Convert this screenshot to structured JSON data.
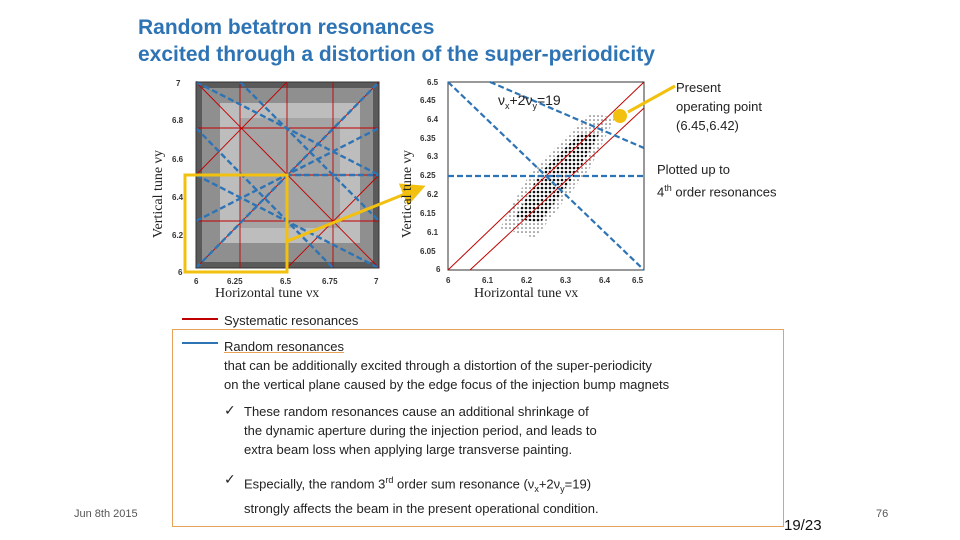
{
  "slide": {
    "title_line1": "Random betatron resonances",
    "title_line2": "excited through a distortion of the super-periodicity",
    "left_plot": {
      "ylabel": "Vertical tune νy",
      "xlabel": "Horizontal tune νx",
      "y_ticks": [
        "7",
        "6.8",
        "6.6",
        "6.4",
        "6.2",
        "6"
      ],
      "x_ticks": [
        "6",
        "6.25",
        "6.5",
        "6.75",
        "7"
      ]
    },
    "right_plot": {
      "ylabel": "Vertical tune νy",
      "xlabel": "Horizontal tune νx",
      "y_ticks": [
        "6.5",
        "6.45",
        "6.4",
        "6.35",
        "6.3",
        "6.25",
        "6.2",
        "6.15",
        "6.1",
        "6.05",
        "6"
      ],
      "x_ticks": [
        "6",
        "6.1",
        "6.2",
        "6.3",
        "6.4",
        "6.5"
      ],
      "resonance_label_pre": "ν",
      "resonance_label_x": "x",
      "resonance_label_mid": "+2ν",
      "resonance_label_y": "y",
      "resonance_label_post": "=19"
    },
    "annotations": {
      "operating_point_l1": "Present",
      "operating_point_l2": "operating point",
      "operating_point_l3": "(6.45,6.42)",
      "plotted_l1": "Plotted up to",
      "plotted_l2_sup": "th",
      "plotted_l2_pre": "4",
      "plotted_l2_post": " order resonances"
    },
    "legend": {
      "systematic": "Systematic resonances",
      "random_title": "Random resonances",
      "random_l2": "that can be additionally excited through a distortion of the super-periodicity",
      "random_l3": "on the vertical plane caused by the edge focus of the injection bump magnets"
    },
    "bullets": {
      "b1_l1": "These random resonances cause an additional shrinkage of",
      "b1_l2": "the dynamic aperture during the injection period, and leads to",
      "b1_l3": "extra beam loss when applying large transverse painting.",
      "b2_pre": "Especially, the random 3",
      "b2_sup": "rd",
      "b2_mid": " order sum resonance (ν",
      "b2_sx": "x",
      "b2_mid2": "+2ν",
      "b2_sy": "y",
      "b2_post": "=19)",
      "b2_l2": "strongly affects the beam in the present operational condition."
    },
    "footer": {
      "date": "Jun 8th 2015",
      "page": "19/23",
      "slide_no": "76"
    },
    "colors": {
      "title": "#2e74b5",
      "systematic": "#c00000",
      "random": "#2e74b5",
      "highlight": "#f2c00e",
      "box_border": "#e8a25a"
    }
  }
}
